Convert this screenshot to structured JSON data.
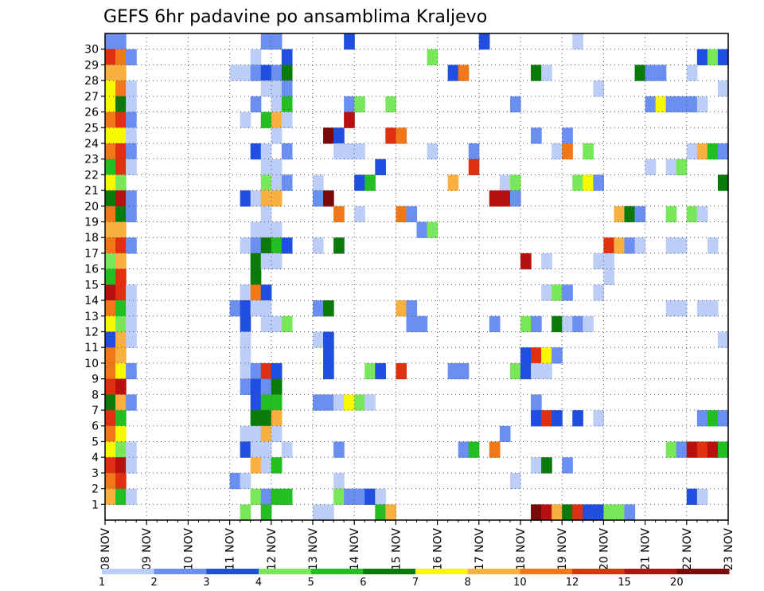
{
  "chart_data": {
    "type": "heatmap",
    "title": "GEFS 6hr padavine po ansamblima Kraljevo",
    "xlabel": "",
    "ylabel": "",
    "x_ticks": [
      "08 NOV",
      "09 NOV",
      "10 NOV",
      "11 NOV",
      "12 NOV",
      "13 NOV",
      "14 NOV",
      "15 NOV",
      "16 NOV",
      "17 NOV",
      "18 NOV",
      "19 NOV",
      "20 NOV",
      "21 NOV",
      "22 NOV",
      "23 NOV"
    ],
    "y_ticks": [
      "1",
      "2",
      "3",
      "4",
      "5",
      "6",
      "7",
      "8",
      "9",
      "10",
      "11",
      "12",
      "13",
      "14",
      "15",
      "16",
      "17",
      "18",
      "19",
      "20",
      "21",
      "22",
      "23",
      "24",
      "25",
      "26",
      "27",
      "28",
      "29",
      "30"
    ],
    "n_steps": 60,
    "n_members": 31,
    "grid": true,
    "colorbar": {
      "labels": [
        "1",
        "2",
        "3",
        "4",
        "5",
        "6",
        "7",
        "8",
        "10",
        "12",
        "15",
        "20"
      ],
      "colors": [
        "#bccdf7",
        "#6a8ff0",
        "#1f4ee0",
        "#78e85a",
        "#22be22",
        "#0a7a0a",
        "#f8f800",
        "#f8b040",
        "#f07818",
        "#e03010",
        "#b81010",
        "#7a0a0a"
      ]
    },
    "cells": [
      [
        0,
        30,
        2
      ],
      [
        1,
        30,
        2
      ],
      [
        15,
        30,
        2
      ],
      [
        16,
        30,
        2
      ],
      [
        23,
        30,
        3
      ],
      [
        36,
        30,
        3
      ],
      [
        45,
        30,
        1
      ],
      [
        0,
        29,
        10
      ],
      [
        1,
        29,
        9
      ],
      [
        2,
        29,
        2
      ],
      [
        14,
        29,
        1
      ],
      [
        17,
        29,
        3
      ],
      [
        31,
        29,
        4
      ],
      [
        57,
        29,
        3
      ],
      [
        58,
        29,
        4
      ],
      [
        59,
        29,
        3
      ],
      [
        0,
        28,
        8
      ],
      [
        1,
        28,
        8
      ],
      [
        12,
        28,
        1
      ],
      [
        13,
        28,
        1
      ],
      [
        14,
        28,
        2
      ],
      [
        15,
        28,
        3
      ],
      [
        16,
        28,
        2
      ],
      [
        17,
        28,
        6
      ],
      [
        33,
        28,
        3
      ],
      [
        34,
        28,
        9
      ],
      [
        41,
        28,
        6
      ],
      [
        42,
        28,
        1
      ],
      [
        51,
        28,
        6
      ],
      [
        52,
        28,
        2
      ],
      [
        53,
        28,
        2
      ],
      [
        56,
        28,
        1
      ],
      [
        0,
        27,
        7
      ],
      [
        1,
        27,
        9
      ],
      [
        2,
        27,
        1
      ],
      [
        15,
        27,
        1
      ],
      [
        16,
        27,
        1
      ],
      [
        17,
        27,
        2
      ],
      [
        47,
        27,
        1
      ],
      [
        59,
        27,
        1
      ],
      [
        0,
        26,
        7
      ],
      [
        1,
        26,
        6
      ],
      [
        2,
        26,
        1
      ],
      [
        14,
        26,
        2
      ],
      [
        16,
        26,
        1
      ],
      [
        17,
        26,
        5
      ],
      [
        23,
        26,
        2
      ],
      [
        24,
        26,
        4
      ],
      [
        27,
        26,
        4
      ],
      [
        39,
        26,
        2
      ],
      [
        52,
        26,
        2
      ],
      [
        53,
        26,
        7
      ],
      [
        54,
        26,
        2
      ],
      [
        55,
        26,
        2
      ],
      [
        56,
        26,
        2
      ],
      [
        57,
        26,
        1
      ],
      [
        0,
        25,
        9
      ],
      [
        1,
        25,
        10
      ],
      [
        2,
        25,
        2
      ],
      [
        13,
        25,
        1
      ],
      [
        15,
        25,
        5
      ],
      [
        16,
        25,
        8
      ],
      [
        17,
        25,
        1
      ],
      [
        23,
        25,
        11
      ],
      [
        0,
        24,
        7
      ],
      [
        1,
        24,
        7
      ],
      [
        2,
        24,
        1
      ],
      [
        16,
        24,
        1
      ],
      [
        21,
        24,
        12
      ],
      [
        22,
        24,
        3
      ],
      [
        27,
        24,
        10
      ],
      [
        28,
        24,
        9
      ],
      [
        41,
        24,
        2
      ],
      [
        44,
        24,
        2
      ],
      [
        0,
        23,
        9
      ],
      [
        1,
        23,
        10
      ],
      [
        2,
        23,
        2
      ],
      [
        14,
        23,
        3
      ],
      [
        15,
        23,
        1
      ],
      [
        17,
        23,
        2
      ],
      [
        22,
        23,
        1
      ],
      [
        23,
        23,
        1
      ],
      [
        24,
        23,
        1
      ],
      [
        31,
        23,
        1
      ],
      [
        35,
        23,
        2
      ],
      [
        43,
        23,
        1
      ],
      [
        44,
        23,
        9
      ],
      [
        46,
        23,
        4
      ],
      [
        56,
        23,
        1
      ],
      [
        57,
        23,
        8
      ],
      [
        58,
        23,
        5
      ],
      [
        59,
        23,
        2
      ],
      [
        0,
        22,
        5
      ],
      [
        1,
        22,
        10
      ],
      [
        2,
        22,
        1
      ],
      [
        15,
        22,
        1
      ],
      [
        16,
        22,
        1
      ],
      [
        26,
        22,
        3
      ],
      [
        35,
        22,
        10
      ],
      [
        52,
        22,
        1
      ],
      [
        54,
        22,
        1
      ],
      [
        55,
        22,
        4
      ],
      [
        0,
        21,
        7
      ],
      [
        1,
        21,
        4
      ],
      [
        15,
        21,
        4
      ],
      [
        16,
        21,
        1
      ],
      [
        17,
        21,
        2
      ],
      [
        20,
        21,
        1
      ],
      [
        24,
        21,
        3
      ],
      [
        25,
        21,
        5
      ],
      [
        33,
        21,
        8
      ],
      [
        38,
        21,
        1
      ],
      [
        39,
        21,
        4
      ],
      [
        45,
        21,
        4
      ],
      [
        46,
        21,
        7
      ],
      [
        47,
        21,
        2
      ],
      [
        59,
        21,
        6
      ],
      [
        0,
        20,
        6
      ],
      [
        1,
        20,
        11
      ],
      [
        2,
        20,
        2
      ],
      [
        13,
        20,
        3
      ],
      [
        14,
        20,
        1
      ],
      [
        15,
        20,
        8
      ],
      [
        16,
        20,
        8
      ],
      [
        20,
        20,
        2
      ],
      [
        21,
        20,
        12
      ],
      [
        37,
        20,
        11
      ],
      [
        38,
        20,
        11
      ],
      [
        39,
        20,
        2
      ],
      [
        0,
        19,
        9
      ],
      [
        1,
        19,
        6
      ],
      [
        2,
        19,
        2
      ],
      [
        15,
        19,
        1
      ],
      [
        22,
        19,
        9
      ],
      [
        24,
        19,
        1
      ],
      [
        28,
        19,
        9
      ],
      [
        29,
        19,
        2
      ],
      [
        49,
        19,
        8
      ],
      [
        50,
        19,
        6
      ],
      [
        51,
        19,
        2
      ],
      [
        54,
        19,
        4
      ],
      [
        56,
        19,
        4
      ],
      [
        57,
        19,
        1
      ],
      [
        0,
        18,
        8
      ],
      [
        1,
        18,
        8
      ],
      [
        14,
        18,
        1
      ],
      [
        15,
        18,
        1
      ],
      [
        16,
        18,
        1
      ],
      [
        30,
        18,
        2
      ],
      [
        31,
        18,
        4
      ],
      [
        0,
        17,
        9
      ],
      [
        1,
        17,
        10
      ],
      [
        2,
        17,
        2
      ],
      [
        13,
        17,
        1
      ],
      [
        14,
        17,
        2
      ],
      [
        15,
        17,
        6
      ],
      [
        16,
        17,
        5
      ],
      [
        17,
        17,
        3
      ],
      [
        20,
        17,
        1
      ],
      [
        22,
        17,
        6
      ],
      [
        48,
        17,
        10
      ],
      [
        49,
        17,
        8
      ],
      [
        50,
        17,
        2
      ],
      [
        51,
        17,
        1
      ],
      [
        54,
        17,
        1
      ],
      [
        55,
        17,
        1
      ],
      [
        58,
        17,
        1
      ],
      [
        0,
        16,
        4
      ],
      [
        1,
        16,
        8
      ],
      [
        14,
        16,
        6
      ],
      [
        15,
        16,
        1
      ],
      [
        16,
        16,
        1
      ],
      [
        40,
        16,
        11
      ],
      [
        42,
        16,
        1
      ],
      [
        47,
        16,
        1
      ],
      [
        48,
        16,
        1
      ],
      [
        0,
        15,
        5
      ],
      [
        1,
        15,
        10
      ],
      [
        14,
        15,
        6
      ],
      [
        48,
        15,
        1
      ],
      [
        0,
        14,
        11
      ],
      [
        1,
        14,
        10
      ],
      [
        2,
        14,
        1
      ],
      [
        13,
        14,
        1
      ],
      [
        14,
        14,
        9
      ],
      [
        15,
        14,
        3
      ],
      [
        42,
        14,
        1
      ],
      [
        43,
        14,
        4
      ],
      [
        44,
        14,
        2
      ],
      [
        47,
        14,
        1
      ],
      [
        0,
        13,
        9
      ],
      [
        1,
        13,
        5
      ],
      [
        2,
        13,
        1
      ],
      [
        12,
        13,
        2
      ],
      [
        13,
        13,
        3
      ],
      [
        14,
        13,
        1
      ],
      [
        15,
        13,
        1
      ],
      [
        20,
        13,
        2
      ],
      [
        21,
        13,
        6
      ],
      [
        28,
        13,
        8
      ],
      [
        29,
        13,
        2
      ],
      [
        54,
        13,
        1
      ],
      [
        55,
        13,
        1
      ],
      [
        57,
        13,
        1
      ],
      [
        58,
        13,
        1
      ],
      [
        0,
        12,
        7
      ],
      [
        1,
        12,
        4
      ],
      [
        2,
        12,
        1
      ],
      [
        13,
        12,
        3
      ],
      [
        15,
        12,
        1
      ],
      [
        16,
        12,
        1
      ],
      [
        17,
        12,
        4
      ],
      [
        29,
        12,
        2
      ],
      [
        30,
        12,
        2
      ],
      [
        37,
        12,
        2
      ],
      [
        40,
        12,
        4
      ],
      [
        41,
        12,
        2
      ],
      [
        43,
        12,
        6
      ],
      [
        44,
        12,
        1
      ],
      [
        45,
        12,
        2
      ],
      [
        46,
        12,
        1
      ],
      [
        0,
        11,
        3
      ],
      [
        1,
        11,
        8
      ],
      [
        2,
        11,
        1
      ],
      [
        13,
        11,
        1
      ],
      [
        20,
        11,
        1
      ],
      [
        21,
        11,
        3
      ],
      [
        59,
        11,
        1
      ],
      [
        0,
        10,
        9
      ],
      [
        1,
        10,
        8
      ],
      [
        13,
        10,
        1
      ],
      [
        21,
        10,
        3
      ],
      [
        40,
        10,
        3
      ],
      [
        41,
        10,
        10
      ],
      [
        42,
        10,
        7
      ],
      [
        43,
        10,
        2
      ],
      [
        0,
        9,
        9
      ],
      [
        1,
        9,
        7
      ],
      [
        2,
        9,
        2
      ],
      [
        13,
        9,
        1
      ],
      [
        14,
        9,
        2
      ],
      [
        15,
        9,
        10
      ],
      [
        16,
        9,
        3
      ],
      [
        21,
        9,
        3
      ],
      [
        25,
        9,
        4
      ],
      [
        26,
        9,
        3
      ],
      [
        28,
        9,
        10
      ],
      [
        33,
        9,
        2
      ],
      [
        34,
        9,
        2
      ],
      [
        39,
        9,
        4
      ],
      [
        40,
        9,
        3
      ],
      [
        41,
        9,
        1
      ],
      [
        42,
        9,
        1
      ],
      [
        0,
        8,
        10
      ],
      [
        1,
        8,
        11
      ],
      [
        13,
        8,
        2
      ],
      [
        14,
        8,
        3
      ],
      [
        15,
        8,
        2
      ],
      [
        16,
        8,
        6
      ],
      [
        0,
        7,
        6
      ],
      [
        1,
        7,
        8
      ],
      [
        2,
        7,
        2
      ],
      [
        14,
        7,
        3
      ],
      [
        15,
        7,
        5
      ],
      [
        16,
        7,
        5
      ],
      [
        20,
        7,
        2
      ],
      [
        21,
        7,
        2
      ],
      [
        22,
        7,
        1
      ],
      [
        23,
        7,
        7
      ],
      [
        24,
        7,
        4
      ],
      [
        25,
        7,
        1
      ],
      [
        41,
        7,
        2
      ],
      [
        0,
        6,
        10
      ],
      [
        1,
        6,
        5
      ],
      [
        14,
        6,
        6
      ],
      [
        15,
        6,
        6
      ],
      [
        16,
        6,
        8
      ],
      [
        41,
        6,
        3
      ],
      [
        42,
        6,
        10
      ],
      [
        43,
        6,
        3
      ],
      [
        45,
        6,
        3
      ],
      [
        47,
        6,
        1
      ],
      [
        57,
        6,
        2
      ],
      [
        58,
        6,
        5
      ],
      [
        59,
        6,
        2
      ],
      [
        0,
        5,
        9
      ],
      [
        1,
        5,
        7
      ],
      [
        13,
        5,
        1
      ],
      [
        14,
        5,
        1
      ],
      [
        15,
        5,
        8
      ],
      [
        16,
        5,
        1
      ],
      [
        38,
        5,
        2
      ],
      [
        0,
        4,
        7
      ],
      [
        1,
        4,
        4
      ],
      [
        2,
        4,
        1
      ],
      [
        13,
        4,
        3
      ],
      [
        14,
        4,
        1
      ],
      [
        15,
        4,
        1
      ],
      [
        17,
        4,
        1
      ],
      [
        22,
        4,
        2
      ],
      [
        34,
        4,
        2
      ],
      [
        35,
        4,
        5
      ],
      [
        37,
        4,
        9
      ],
      [
        54,
        4,
        4
      ],
      [
        55,
        4,
        2
      ],
      [
        56,
        4,
        11
      ],
      [
        57,
        4,
        10
      ],
      [
        58,
        4,
        11
      ],
      [
        59,
        4,
        5
      ],
      [
        0,
        3,
        10
      ],
      [
        1,
        3,
        11
      ],
      [
        2,
        3,
        1
      ],
      [
        14,
        3,
        8
      ],
      [
        15,
        3,
        1
      ],
      [
        16,
        3,
        5
      ],
      [
        41,
        3,
        1
      ],
      [
        42,
        3,
        6
      ],
      [
        44,
        3,
        2
      ],
      [
        0,
        2,
        9
      ],
      [
        1,
        2,
        10
      ],
      [
        12,
        2,
        2
      ],
      [
        13,
        2,
        1
      ],
      [
        22,
        2,
        1
      ],
      [
        39,
        2,
        1
      ],
      [
        0,
        1,
        8
      ],
      [
        1,
        1,
        5
      ],
      [
        2,
        1,
        1
      ],
      [
        14,
        1,
        4
      ],
      [
        15,
        1,
        2
      ],
      [
        16,
        1,
        5
      ],
      [
        17,
        1,
        5
      ],
      [
        22,
        1,
        4
      ],
      [
        23,
        1,
        2
      ],
      [
        24,
        1,
        2
      ],
      [
        25,
        1,
        3
      ],
      [
        26,
        1,
        1
      ],
      [
        56,
        1,
        3
      ],
      [
        57,
        1,
        1
      ],
      [
        13,
        0,
        4
      ],
      [
        15,
        0,
        5
      ],
      [
        20,
        0,
        1
      ],
      [
        21,
        0,
        1
      ],
      [
        26,
        0,
        5
      ],
      [
        27,
        0,
        8
      ],
      [
        41,
        0,
        12
      ],
      [
        42,
        0,
        11
      ],
      [
        43,
        0,
        8
      ],
      [
        44,
        0,
        6
      ],
      [
        45,
        0,
        10
      ],
      [
        46,
        0,
        3
      ],
      [
        47,
        0,
        3
      ],
      [
        48,
        0,
        4
      ],
      [
        49,
        0,
        4
      ],
      [
        50,
        0,
        2
      ]
    ]
  }
}
